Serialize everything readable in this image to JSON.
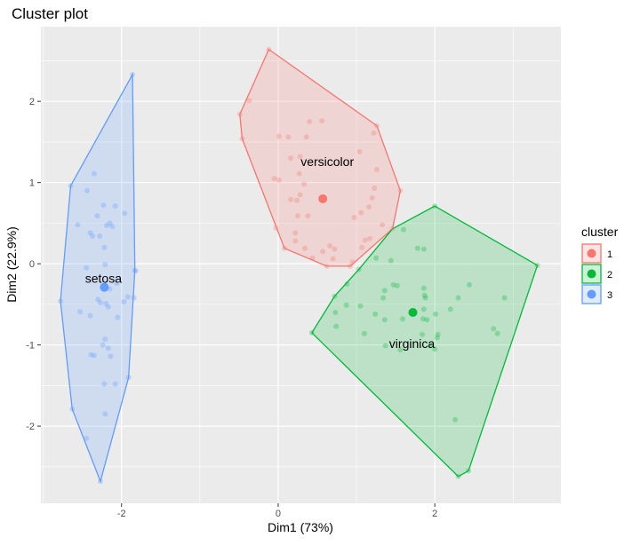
{
  "chart_data": {
    "type": "scatter",
    "title": "Cluster plot",
    "xlabel": "Dim1 (73%)",
    "ylabel": "Dim2 (22.9%)",
    "xlim": [
      -3.03,
      3.61
    ],
    "ylim": [
      -2.95,
      2.92
    ],
    "xticks": [
      -2,
      0,
      2
    ],
    "yticks": [
      -2,
      -1,
      0,
      1,
      2
    ],
    "grid": true,
    "legend": {
      "title": "cluster",
      "position": "right"
    },
    "series": [
      {
        "name": "1",
        "label": "versicolor",
        "color": "#F8766D",
        "centroid": [
          0.57,
          0.8
        ],
        "hull": [
          [
            -0.12,
            2.64
          ],
          [
            1.26,
            1.7
          ],
          [
            1.56,
            0.9
          ],
          [
            1.46,
            0.43
          ],
          [
            0.92,
            -0.03
          ],
          [
            0.62,
            -0.03
          ],
          [
            0.08,
            0.19
          ],
          [
            -0.46,
            1.54
          ],
          [
            -0.49,
            1.84
          ]
        ],
        "points": [
          [
            -0.12,
            2.64
          ],
          [
            -0.49,
            1.84
          ],
          [
            -0.46,
            1.54
          ],
          [
            0.08,
            0.19
          ],
          [
            0.62,
            -0.03
          ],
          [
            0.92,
            -0.03
          ],
          [
            1.46,
            0.43
          ],
          [
            1.56,
            0.9
          ],
          [
            1.26,
            1.7
          ],
          [
            -0.37,
            2.01
          ],
          [
            0.4,
            1.75
          ],
          [
            0.56,
            1.76
          ],
          [
            0.01,
            1.57
          ],
          [
            0.13,
            1.56
          ],
          [
            0.36,
            1.56
          ],
          [
            1.22,
            1.61
          ],
          [
            1.04,
            1.38
          ],
          [
            0.16,
            1.3
          ],
          [
            0.28,
            1.32
          ],
          [
            1.26,
            1.16
          ],
          [
            0.27,
            1.11
          ],
          [
            -0.05,
            1.05
          ],
          [
            0.01,
            1.03
          ],
          [
            0.33,
            0.98
          ],
          [
            1.23,
            0.93
          ],
          [
            0.28,
            0.85
          ],
          [
            0.16,
            0.79
          ],
          [
            0.24,
            0.78
          ],
          [
            1.2,
            0.81
          ],
          [
            1.16,
            0.7
          ],
          [
            1.06,
            0.63
          ],
          [
            0.97,
            0.57
          ],
          [
            0.25,
            0.59
          ],
          [
            0.38,
            0.59
          ],
          [
            1.33,
            0.48
          ],
          [
            -0.03,
            0.44
          ],
          [
            0.22,
            0.38
          ],
          [
            0.22,
            0.28
          ],
          [
            1.11,
            0.29
          ],
          [
            1.17,
            0.31
          ],
          [
            1.07,
            0.2
          ],
          [
            0.34,
            0.19
          ],
          [
            0.66,
            0.22
          ],
          [
            0.72,
            0.18
          ],
          [
            0.57,
            0.15
          ],
          [
            0.44,
            0.07
          ],
          [
            0.7,
            0.06
          ],
          [
            0.95,
            0.02
          ]
        ]
      },
      {
        "name": "2",
        "label": "virginica",
        "color": "#00BA38",
        "centroid": [
          1.72,
          -0.6
        ],
        "hull": [
          [
            2.0,
            0.71
          ],
          [
            3.31,
            -0.02
          ],
          [
            2.43,
            -2.55
          ],
          [
            2.3,
            -2.62
          ],
          [
            0.43,
            -0.85
          ],
          [
            0.72,
            -0.4
          ],
          [
            1.03,
            -0.07
          ],
          [
            1.46,
            0.43
          ]
        ],
        "points": [
          [
            2.0,
            0.71
          ],
          [
            3.31,
            -0.02
          ],
          [
            2.43,
            -2.55
          ],
          [
            2.3,
            -2.62
          ],
          [
            0.43,
            -0.85
          ],
          [
            0.72,
            -0.4
          ],
          [
            1.03,
            -0.07
          ],
          [
            1.6,
            0.42
          ],
          [
            1.78,
            0.19
          ],
          [
            1.86,
            0.18
          ],
          [
            1.25,
            0.07
          ],
          [
            1.44,
            0.04
          ],
          [
            0.88,
            -0.25
          ],
          [
            1.47,
            -0.26
          ],
          [
            1.52,
            -0.27
          ],
          [
            1.86,
            -0.3
          ],
          [
            2.44,
            -0.26
          ],
          [
            1.36,
            -0.33
          ],
          [
            1.87,
            -0.39
          ],
          [
            1.88,
            -0.42
          ],
          [
            2.3,
            -0.42
          ],
          [
            2.89,
            -0.42
          ],
          [
            1.34,
            -0.42
          ],
          [
            0.87,
            -0.51
          ],
          [
            1.05,
            -0.52
          ],
          [
            0.73,
            -0.6
          ],
          [
            1.24,
            -0.62
          ],
          [
            1.86,
            -0.56
          ],
          [
            2.2,
            -0.56
          ],
          [
            2.01,
            -0.62
          ],
          [
            1.59,
            -0.68
          ],
          [
            1.36,
            -0.69
          ],
          [
            1.85,
            -0.68
          ],
          [
            1.9,
            -0.69
          ],
          [
            0.74,
            -0.77
          ],
          [
            2.75,
            -0.8
          ],
          [
            2.8,
            -0.86
          ],
          [
            1.1,
            -0.86
          ],
          [
            1.84,
            -0.87
          ],
          [
            2.04,
            -0.87
          ],
          [
            2.03,
            -0.91
          ],
          [
            1.37,
            -1.01
          ],
          [
            1.56,
            -1.06
          ],
          [
            1.94,
            -1.01
          ],
          [
            2.0,
            -1.05
          ],
          [
            2.26,
            -1.92
          ]
        ]
      },
      {
        "name": "3",
        "label": "setosa",
        "color": "#619CFF",
        "centroid": [
          -2.22,
          -0.29
        ],
        "hull": [
          [
            -1.86,
            2.33
          ],
          [
            -1.83,
            -0.08
          ],
          [
            -1.91,
            -1.4
          ],
          [
            -2.27,
            -2.68
          ],
          [
            -2.63,
            -1.79
          ],
          [
            -2.78,
            -0.46
          ],
          [
            -2.65,
            0.96
          ]
        ],
        "points": [
          [
            -1.86,
            2.33
          ],
          [
            -2.65,
            0.96
          ],
          [
            -2.78,
            -0.46
          ],
          [
            -2.63,
            -1.79
          ],
          [
            -2.27,
            -2.68
          ],
          [
            -1.91,
            -1.4
          ],
          [
            -1.83,
            -0.08
          ],
          [
            -2.35,
            1.11
          ],
          [
            -2.44,
            0.9
          ],
          [
            -2.23,
            0.72
          ],
          [
            -2.08,
            0.71
          ],
          [
            -1.96,
            0.62
          ],
          [
            -2.31,
            0.59
          ],
          [
            -2.15,
            0.5
          ],
          [
            -2.19,
            0.47
          ],
          [
            -2.12,
            0.46
          ],
          [
            -2.56,
            0.48
          ],
          [
            -2.4,
            0.38
          ],
          [
            -2.37,
            0.34
          ],
          [
            -2.28,
            0.34
          ],
          [
            -2.22,
            0.2
          ],
          [
            -2.21,
            -0.01
          ],
          [
            -2.45,
            -0.05
          ],
          [
            -2.06,
            -0.24
          ],
          [
            -2.15,
            -0.31
          ],
          [
            -1.82,
            -0.09
          ],
          [
            -1.92,
            -0.41
          ],
          [
            -1.84,
            -0.42
          ],
          [
            -1.97,
            -0.47
          ],
          [
            -2.3,
            -0.44
          ],
          [
            -2.27,
            -0.48
          ],
          [
            -2.2,
            -0.49
          ],
          [
            -2.17,
            -0.53
          ],
          [
            -2.53,
            -0.59
          ],
          [
            -2.4,
            -0.64
          ],
          [
            -2.05,
            -0.66
          ],
          [
            -2.21,
            -0.93
          ],
          [
            -2.24,
            -1.0
          ],
          [
            -2.17,
            -1.04
          ],
          [
            -2.39,
            -1.12
          ],
          [
            -2.35,
            -1.13
          ],
          [
            -2.14,
            -1.14
          ],
          [
            -2.22,
            -1.48
          ],
          [
            -2.08,
            -1.48
          ],
          [
            -2.21,
            -1.85
          ],
          [
            -2.45,
            -2.15
          ]
        ]
      }
    ]
  }
}
